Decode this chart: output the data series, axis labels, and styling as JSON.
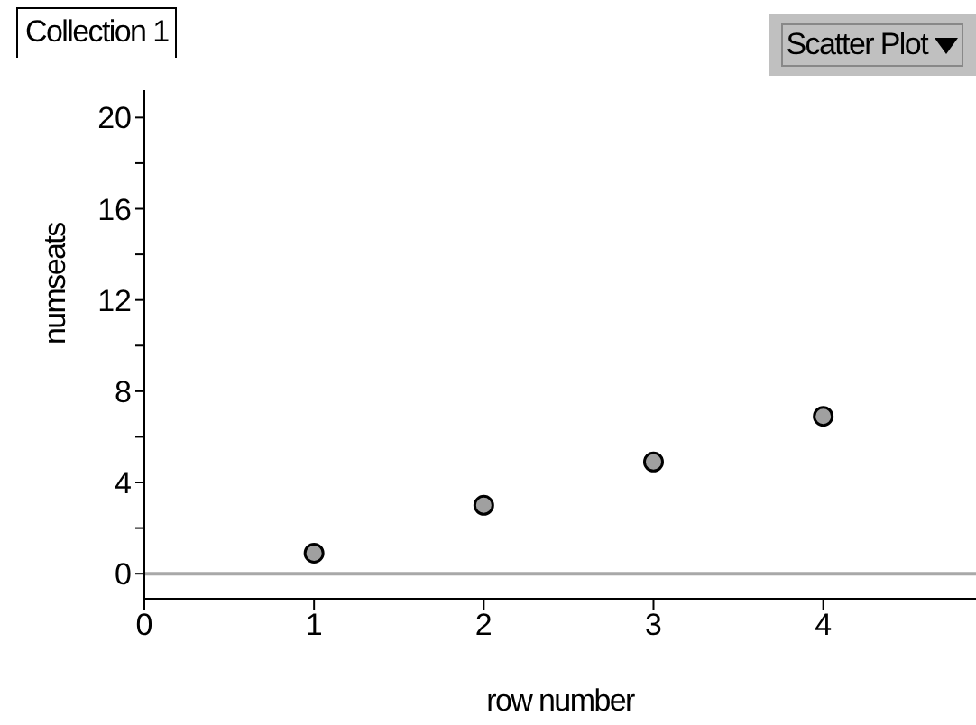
{
  "chart_data": {
    "type": "scatter",
    "title": "Collection 1",
    "annotations": [
      "Scatter Plot"
    ],
    "xlabel": "row number",
    "ylabel": "numseats",
    "x": [
      1,
      2,
      3,
      4
    ],
    "series": [
      {
        "color": "#a0a0a0",
        "values": [
          0.9,
          3,
          4.9,
          6.9
        ]
      }
    ],
    "marker": "circle",
    "xlim": [
      0,
      4.9
    ],
    "xticks": [
      0,
      1,
      2,
      3,
      4
    ],
    "ylim": [
      -1.1,
      21.2
    ],
    "yticks": [
      0,
      {
        "value": 2,
        "label": null
      },
      4,
      {
        "value": 6,
        "label": null
      },
      8,
      {
        "value": 10,
        "label": null
      },
      12,
      {
        "value": 14,
        "label": null
      },
      16,
      {
        "value": 18,
        "label": null
      },
      20
    ],
    "ref_lines": [
      {
        "axis": "y",
        "value": 0,
        "color": "#a8a8a8"
      }
    ],
    "grid": false,
    "legend": false
  }
}
